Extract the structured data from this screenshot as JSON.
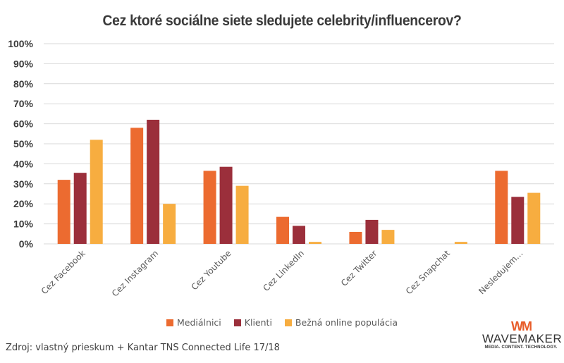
{
  "chart_data": {
    "type": "bar",
    "title": "Cez ktoré sociálne siete sledujete celebrity/influencerov?",
    "xlabel": "",
    "ylabel": "",
    "ylim": [
      0,
      100
    ],
    "yticks": [
      "0%",
      "10%",
      "20%",
      "30%",
      "40%",
      "50%",
      "60%",
      "70%",
      "80%",
      "90%",
      "100%"
    ],
    "grid": true,
    "legend_position": "bottom",
    "categories": [
      "Cez Facebook",
      "Cez Instagram",
      "Cez Youtube",
      "Cez LinkedIn",
      "Cez Twitter",
      "Cez Snapchat",
      "Nesledujem..."
    ],
    "series": [
      {
        "name": "Mediálnici",
        "color": "#ec6b30",
        "values": [
          32,
          58,
          36.5,
          13.5,
          6,
          0,
          36.5
        ]
      },
      {
        "name": "Klienti",
        "color": "#9b2f3b",
        "values": [
          35.5,
          62,
          38.5,
          9,
          12,
          0,
          23.5
        ]
      },
      {
        "name": "Bežná online populácia",
        "color": "#f7ad40",
        "values": [
          52,
          20,
          29,
          1,
          7,
          1,
          25.5
        ]
      }
    ]
  },
  "footer": {
    "source": "Zdroj: vlastný prieskum + Kantar TNS Connected Life 17/18"
  },
  "logo": {
    "mark": "WM",
    "name": "WAVEMAKER",
    "tagline": "MEDIA. CONTENT. TECHNOLOGY."
  }
}
